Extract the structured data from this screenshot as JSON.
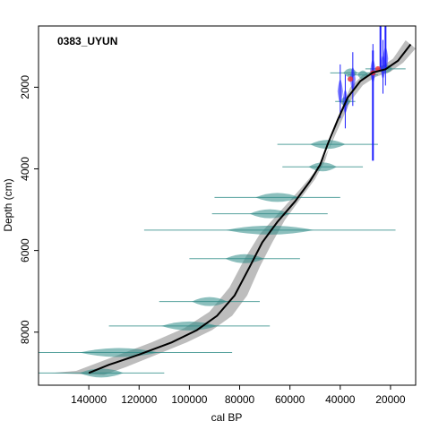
{
  "chart_data": {
    "type": "line",
    "title": "0383_UYUN",
    "xlabel": "cal BP",
    "ylabel": "Depth (cm)",
    "x_reversed": true,
    "y_reversed": true,
    "xlim": [
      160000,
      10000
    ],
    "ylim": [
      500,
      9300
    ],
    "x_ticks": [
      140000,
      120000,
      100000,
      80000,
      60000,
      40000,
      20000
    ],
    "x_tick_labels": [
      "140000",
      "120000",
      "100000",
      "80000",
      "60000",
      "40000",
      "20000"
    ],
    "y_ticks": [
      2000,
      4000,
      6000,
      8000
    ],
    "y_tick_labels": [
      "2000",
      "4000",
      "6000",
      "8000"
    ],
    "colors": {
      "envelope": "#bdbdbd",
      "median": "#000000",
      "dated_marine": "#2e8b87",
      "dated_c14": "#1f1fff",
      "outlier": "#e8303a"
    },
    "series": [
      {
        "type": "line",
        "values": [
          {
            "x": 12000,
            "y": 950
          },
          {
            "x": 17000,
            "y": 1350
          },
          {
            "x": 22000,
            "y": 1560
          },
          {
            "x": 27000,
            "y": 1640
          },
          {
            "x": 32000,
            "y": 1850
          },
          {
            "x": 37000,
            "y": 2250
          },
          {
            "x": 41000,
            "y": 2800
          },
          {
            "x": 45000,
            "y": 3400
          },
          {
            "x": 48000,
            "y": 3900
          },
          {
            "x": 52000,
            "y": 4300
          },
          {
            "x": 58000,
            "y": 4800
          },
          {
            "x": 65000,
            "y": 5300
          },
          {
            "x": 71000,
            "y": 5800
          },
          {
            "x": 76000,
            "y": 6400
          },
          {
            "x": 82000,
            "y": 7100
          },
          {
            "x": 89000,
            "y": 7600
          },
          {
            "x": 97000,
            "y": 7950
          },
          {
            "x": 107000,
            "y": 8250
          },
          {
            "x": 120000,
            "y": 8550
          },
          {
            "x": 132000,
            "y": 8800
          },
          {
            "x": 140000,
            "y": 9000
          }
        ]
      },
      {
        "type": "area",
        "upper": [
          {
            "x": 14000,
            "y": 850
          },
          {
            "x": 19000,
            "y": 1300
          },
          {
            "x": 25000,
            "y": 1550
          },
          {
            "x": 31000,
            "y": 1700
          },
          {
            "x": 36000,
            "y": 2000
          },
          {
            "x": 40000,
            "y": 2600
          },
          {
            "x": 43000,
            "y": 3200
          },
          {
            "x": 46000,
            "y": 3800
          },
          {
            "x": 50000,
            "y": 4250
          },
          {
            "x": 56000,
            "y": 4750
          },
          {
            "x": 62000,
            "y": 5250
          },
          {
            "x": 67000,
            "y": 5800
          },
          {
            "x": 72000,
            "y": 6400
          },
          {
            "x": 77000,
            "y": 7100
          },
          {
            "x": 83000,
            "y": 7600
          },
          {
            "x": 91000,
            "y": 7950
          },
          {
            "x": 101000,
            "y": 8250
          },
          {
            "x": 113000,
            "y": 8550
          },
          {
            "x": 125000,
            "y": 8850
          },
          {
            "x": 134000,
            "y": 9050
          }
        ],
        "lower": [
          {
            "x": 10000,
            "y": 1050
          },
          {
            "x": 15000,
            "y": 1400
          },
          {
            "x": 20000,
            "y": 1620
          },
          {
            "x": 26000,
            "y": 1750
          },
          {
            "x": 31000,
            "y": 1950
          },
          {
            "x": 36000,
            "y": 2350
          },
          {
            "x": 40000,
            "y": 2900
          },
          {
            "x": 44000,
            "y": 3450
          },
          {
            "x": 49000,
            "y": 4000
          },
          {
            "x": 56000,
            "y": 4500
          },
          {
            "x": 64000,
            "y": 5050
          },
          {
            "x": 72000,
            "y": 5600
          },
          {
            "x": 78000,
            "y": 6200
          },
          {
            "x": 84000,
            "y": 6900
          },
          {
            "x": 92000,
            "y": 7500
          },
          {
            "x": 102000,
            "y": 7900
          },
          {
            "x": 115000,
            "y": 8250
          },
          {
            "x": 130000,
            "y": 8600
          },
          {
            "x": 145000,
            "y": 8950
          },
          {
            "x": 155000,
            "y": 9000
          }
        ]
      },
      {
        "type": "scatter",
        "marker": "teal-distribution",
        "values": [
          {
            "x": 45000,
            "y": 3400,
            "spread": 20000
          },
          {
            "x": 47000,
            "y": 3950,
            "spread": 16000
          },
          {
            "x": 65000,
            "y": 4700,
            "spread": 25000
          },
          {
            "x": 68000,
            "y": 5100,
            "spread": 23000
          },
          {
            "x": 68000,
            "y": 5500,
            "spread": 50000
          },
          {
            "x": 78000,
            "y": 6200,
            "spread": 22000
          },
          {
            "x": 92000,
            "y": 7250,
            "spread": 20000
          },
          {
            "x": 100000,
            "y": 7850,
            "spread": 32000
          },
          {
            "x": 128000,
            "y": 8500,
            "spread": 45000
          },
          {
            "x": 135000,
            "y": 9000,
            "spread": 25000
          },
          {
            "x": 36000,
            "y": 1650,
            "spread": 8000
          },
          {
            "x": 31000,
            "y": 1700,
            "spread": 6000
          },
          {
            "x": 22000,
            "y": 1550,
            "spread": 8000
          },
          {
            "x": 38000,
            "y": 2350,
            "spread": 4000
          }
        ]
      },
      {
        "type": "scatter",
        "marker": "blue-distribution",
        "values": [
          {
            "x": 35000,
            "y": 1800
          },
          {
            "x": 40000,
            "y": 2100
          },
          {
            "x": 38000,
            "y": 2350
          },
          {
            "x": 27000,
            "y": 1600
          },
          {
            "x": 23000,
            "y": 1500
          },
          {
            "x": 22000,
            "y": 1300
          }
        ]
      },
      {
        "type": "scatter",
        "marker": "outlier",
        "values": [
          {
            "x": 36000,
            "y": 1800
          },
          {
            "x": 27000,
            "y": 1650
          },
          {
            "x": 25000,
            "y": 1550
          }
        ]
      }
    ]
  }
}
